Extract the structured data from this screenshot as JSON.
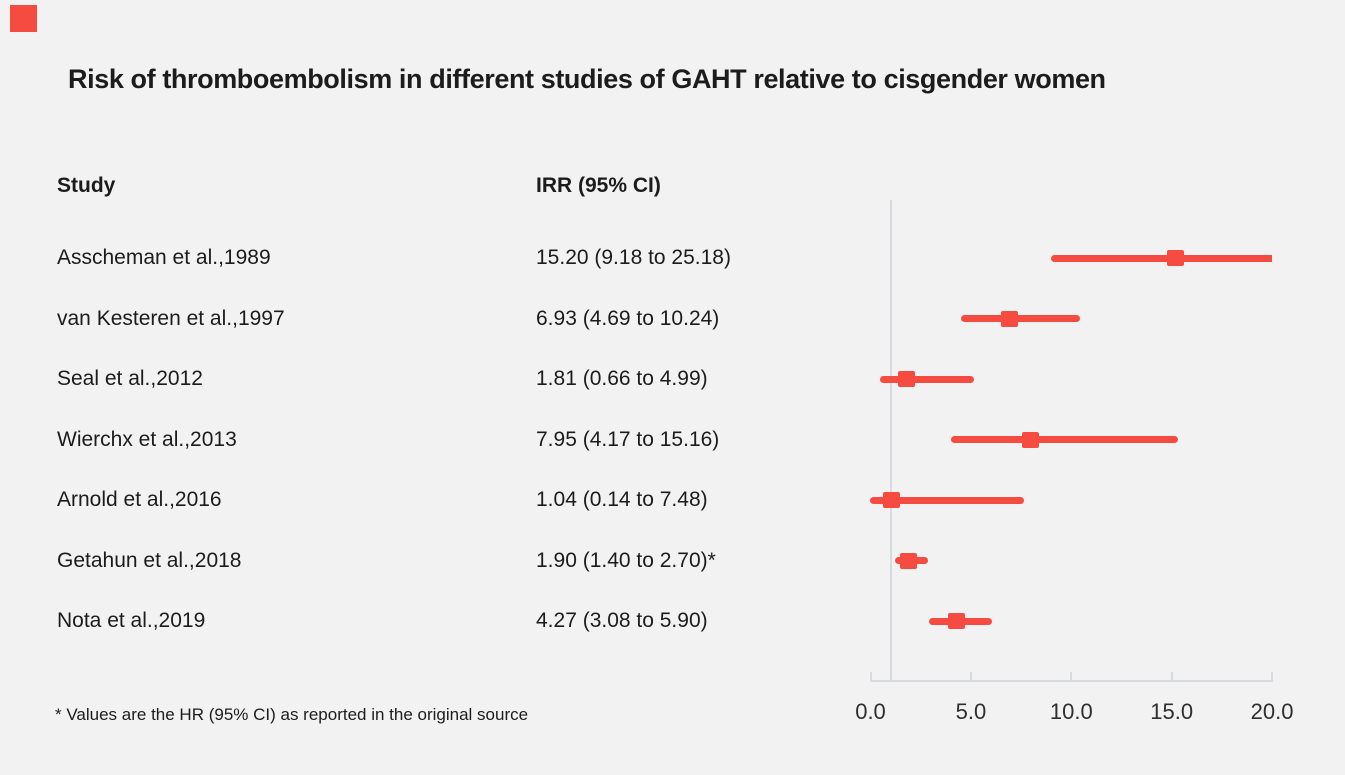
{
  "colors": {
    "background": "#f2f2f3",
    "accent_red": "#f64b40",
    "axis_gray": "#d7dbe0",
    "text": "#1c1c1c"
  },
  "logo": {
    "name": "red-square-logo"
  },
  "title": "Risk of thromboembolism in different studies of GAHT relative to cisgender women",
  "table": {
    "col_study": "Study",
    "col_irr": "IRR (95% CI)"
  },
  "footnote": "* Values are the HR (95% CI) as reported in the original source",
  "chart_data": {
    "type": "scatter",
    "subtype": "forest-plot",
    "title": "Risk of thromboembolism in different studies of GAHT relative to cisgender women",
    "xlabel": "IRR (95% CI)",
    "xlim": [
      0,
      20
    ],
    "x_ticks": [
      0,
      5,
      10,
      15,
      20
    ],
    "x_tick_labels": [
      "0.0",
      "5.0",
      "10.0",
      "15.0",
      "20.0"
    ],
    "reference_line_x": 1.0,
    "grid": false,
    "legend_position": "none",
    "marker_color": "#f64b40",
    "rows": [
      {
        "study": "Asscheman et al.,1989",
        "label": "15.20 (9.18 to 25.18)",
        "irr": 15.2,
        "ci_low": 9.18,
        "ci_high": 25.18
      },
      {
        "study": "van Kesteren et al.,1997",
        "label": "6.93 (4.69 to 10.24)",
        "irr": 6.93,
        "ci_low": 4.69,
        "ci_high": 10.24
      },
      {
        "study": "Seal et al.,2012",
        "label": "1.81 (0.66 to 4.99)",
        "irr": 1.81,
        "ci_low": 0.66,
        "ci_high": 4.99
      },
      {
        "study": "Wierchx et al.,2013",
        "label": "7.95 (4.17 to 15.16)",
        "irr": 7.95,
        "ci_low": 4.17,
        "ci_high": 15.16
      },
      {
        "study": "Arnold et al.,2016",
        "label": "1.04 (0.14 to 7.48)",
        "irr": 1.04,
        "ci_low": 0.14,
        "ci_high": 7.48
      },
      {
        "study": "Getahun et al.,2018",
        "label": "1.90 (1.40 to 2.70)*",
        "irr": 1.9,
        "ci_low": 1.4,
        "ci_high": 2.7
      },
      {
        "study": "Nota et al.,2019",
        "label": "4.27 (3.08 to 5.90)",
        "irr": 4.27,
        "ci_low": 3.08,
        "ci_high": 5.9
      }
    ]
  }
}
